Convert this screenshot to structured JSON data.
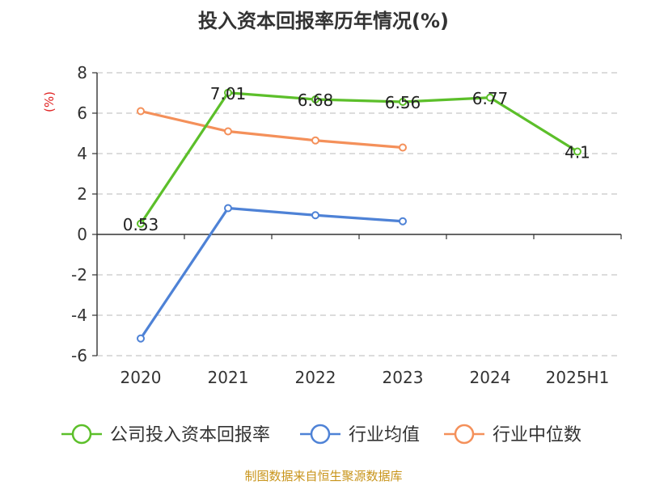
{
  "chart_data": {
    "type": "line",
    "title": "投入资本回报率历年情况(%)",
    "unit_label": "(%)",
    "categories": [
      "2020",
      "2021",
      "2022",
      "2023",
      "2024",
      "2025H1"
    ],
    "ylim": [
      -6,
      8
    ],
    "yticks": [
      8,
      6,
      4,
      2,
      0,
      -2,
      -4,
      -6
    ],
    "ytick_labels": [
      "8",
      "6",
      "4",
      "2",
      "0",
      "-2",
      "-4",
      "-6"
    ],
    "grid": true,
    "legend_position": "bottom",
    "series": [
      {
        "name": "公司投入资本回报率",
        "color": "#5cbf2a",
        "values": [
          0.53,
          7.01,
          6.68,
          6.56,
          6.77,
          4.1
        ],
        "labels": [
          "0.53",
          "7.01",
          "6.68",
          "6.56",
          "6.77",
          "4.1"
        ]
      },
      {
        "name": "行业均值",
        "color": "#4e82d6",
        "values": [
          -5.15,
          1.3,
          0.95,
          0.65,
          null,
          null
        ]
      },
      {
        "name": "行业中位数",
        "color": "#f4905a",
        "values": [
          6.1,
          5.1,
          4.65,
          4.3,
          null,
          null
        ]
      }
    ],
    "source": "制图数据来自恒生聚源数据库"
  }
}
